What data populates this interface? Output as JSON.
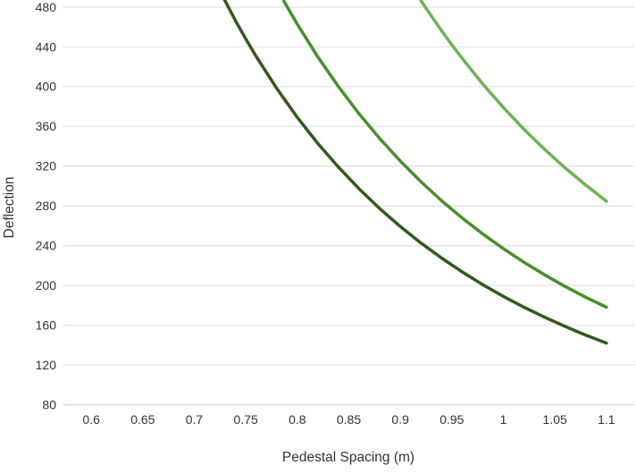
{
  "chart_data": {
    "type": "line",
    "title": "",
    "xlabel": "Pedestal Spacing (m)",
    "ylabel": "Deflection",
    "grid": true,
    "legend": "none",
    "xlim": [
      0.573,
      1.127
    ],
    "ylim": [
      79.1,
      487.2
    ],
    "x_ticks": [
      {
        "value": 0.6,
        "label": "0.6"
      },
      {
        "value": 0.65,
        "label": "0.65"
      },
      {
        "value": 0.7,
        "label": "0.7"
      },
      {
        "value": 0.75,
        "label": "0.75"
      },
      {
        "value": 0.8,
        "label": "0.8"
      },
      {
        "value": 0.85,
        "label": "0.85"
      },
      {
        "value": 0.9,
        "label": "0.9"
      },
      {
        "value": 0.95,
        "label": "0.95"
      },
      {
        "value": 1,
        "label": "1"
      },
      {
        "value": 1.05,
        "label": "1.05"
      },
      {
        "value": 1.1,
        "label": "1.1"
      }
    ],
    "y_ticks": [
      {
        "value": 80,
        "label": "80"
      },
      {
        "value": 120,
        "label": "120"
      },
      {
        "value": 160,
        "label": "160"
      },
      {
        "value": 200,
        "label": "200"
      },
      {
        "value": 240,
        "label": "240"
      },
      {
        "value": 280,
        "label": "280"
      },
      {
        "value": 320,
        "label": "320"
      },
      {
        "value": 360,
        "label": "360"
      },
      {
        "value": 400,
        "label": "400"
      },
      {
        "value": 440,
        "label": "440"
      },
      {
        "value": 480,
        "label": "480"
      }
    ],
    "colors": {
      "background": "#FFFFFF",
      "gridline": "#E3E3E3",
      "axis_line": "#D2D2D2",
      "tick_text": "#333333"
    },
    "series": [
      {
        "name": "curve-dark-green",
        "color": "#305A1D",
        "points": [
          [
            0.7295,
            487.2
          ],
          [
            0.74,
            466.4
          ],
          [
            0.75,
            448.0
          ],
          [
            0.76,
            430.5
          ],
          [
            0.78,
            398.3
          ],
          [
            0.8,
            369.1
          ],
          [
            0.82,
            342.8
          ],
          [
            0.84,
            318.9
          ],
          [
            0.86,
            297.2
          ],
          [
            0.88,
            277.3
          ],
          [
            0.9,
            259.3
          ],
          [
            0.92,
            242.7
          ],
          [
            0.94,
            227.6
          ],
          [
            0.96,
            213.6
          ],
          [
            0.98,
            200.8
          ],
          [
            1.0,
            189.0
          ],
          [
            1.02,
            178.1
          ],
          [
            1.04,
            168.0
          ],
          [
            1.06,
            158.7
          ],
          [
            1.08,
            150.0
          ],
          [
            1.1,
            142.0
          ]
        ]
      },
      {
        "name": "curve-medium-green",
        "color": "#478F2C",
        "points": [
          [
            0.787,
            486.2
          ],
          [
            0.79,
            480.7
          ],
          [
            0.8,
            462.9
          ],
          [
            0.82,
            429.8
          ],
          [
            0.84,
            399.9
          ],
          [
            0.86,
            372.6
          ],
          [
            0.88,
            347.8
          ],
          [
            0.9,
            325.1
          ],
          [
            0.92,
            304.4
          ],
          [
            0.94,
            285.3
          ],
          [
            0.96,
            267.9
          ],
          [
            0.98,
            251.8
          ],
          [
            1.0,
            237.0
          ],
          [
            1.02,
            223.3
          ],
          [
            1.04,
            210.7
          ],
          [
            1.06,
            199.0
          ],
          [
            1.08,
            188.1
          ],
          [
            1.1,
            178.1
          ]
        ]
      },
      {
        "name": "curve-light-green",
        "color": "#6DB254",
        "points": [
          [
            0.92,
            486.7
          ],
          [
            0.93,
            471.2
          ],
          [
            0.94,
            456.3
          ],
          [
            0.95,
            442.1
          ],
          [
            0.96,
            428.4
          ],
          [
            0.98,
            402.7
          ],
          [
            1.0,
            379.0
          ],
          [
            1.02,
            357.1
          ],
          [
            1.04,
            336.9
          ],
          [
            1.06,
            318.2
          ],
          [
            1.08,
            300.9
          ],
          [
            1.1,
            284.7
          ]
        ]
      }
    ]
  }
}
